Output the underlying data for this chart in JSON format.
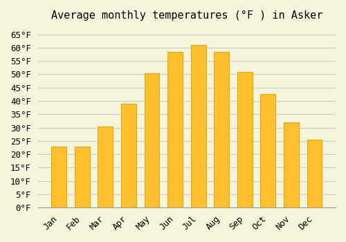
{
  "title": "Average monthly temperatures (°F ) in Asker",
  "months": [
    "Jan",
    "Feb",
    "Mar",
    "Apr",
    "May",
    "Jun",
    "Jul",
    "Aug",
    "Sep",
    "Oct",
    "Nov",
    "Dec"
  ],
  "values": [
    23,
    23,
    30.5,
    39,
    50.5,
    58.5,
    61,
    58.5,
    51,
    42.5,
    32,
    25.5
  ],
  "bar_color_main": "#FFC030",
  "bar_color_edge": "#E8A800",
  "background_color": "#F5F5DC",
  "grid_color": "#CCCCCC",
  "ylim": [
    0,
    68
  ],
  "yticks": [
    0,
    5,
    10,
    15,
    20,
    25,
    30,
    35,
    40,
    45,
    50,
    55,
    60,
    65
  ],
  "ylabel_suffix": "°F",
  "title_fontsize": 11,
  "tick_fontsize": 9,
  "font_family": "monospace"
}
